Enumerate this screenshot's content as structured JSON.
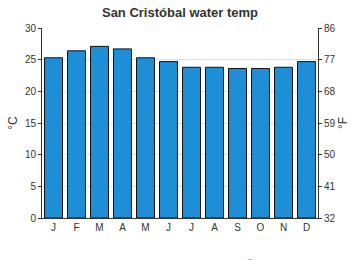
{
  "chart_data": {
    "type": "bar",
    "title": "San Cristóbal water temp",
    "categories": [
      "J",
      "F",
      "M",
      "A",
      "M",
      "J",
      "J",
      "A",
      "S",
      "O",
      "N",
      "D"
    ],
    "values": [
      25.3,
      26.4,
      27.1,
      26.7,
      25.3,
      24.7,
      23.8,
      23.8,
      23.6,
      23.6,
      23.8,
      24.7
    ],
    "color": "#1e8fd6",
    "y_label": "°C",
    "y2_label": "°F",
    "ylim": [
      0,
      30
    ],
    "yticks": [
      0,
      5,
      10,
      15,
      20,
      25,
      30
    ],
    "y2lim": [
      32,
      86
    ],
    "y2ticks": [
      32,
      41,
      50,
      59,
      68,
      77,
      86
    ],
    "grid": true,
    "annotations": [
      "© www.seatemperature.org"
    ]
  }
}
